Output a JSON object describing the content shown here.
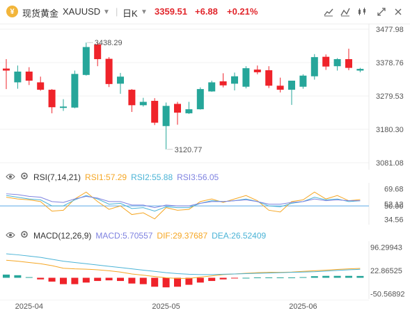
{
  "header": {
    "logo_glyph": "¥",
    "instrument_name": "现货黄金",
    "symbol": "XAUUSD",
    "timeframe": "日K",
    "last_price": "3359.51",
    "change": "+6.88",
    "change_pct": "+0.21%",
    "icons": [
      "indicator-icon",
      "compare-icon",
      "candle-style-icon",
      "fullscreen-icon",
      "close-icon"
    ]
  },
  "colors": {
    "up": "#26a69a",
    "down": "#ef232a",
    "rsi1": "#f5a623",
    "rsi2": "#4ab3d6",
    "rsi3": "#7e82e0",
    "macd_dif": "#f5a623",
    "macd_dea": "#4ab3d6"
  },
  "chart_data": [
    {
      "type": "candlestick",
      "price_labels": [
        "3477.98",
        "3378.76",
        "3279.53",
        "3180.30",
        "3081.08"
      ],
      "ylim": [
        3081.08,
        3477.98
      ],
      "annotations": [
        {
          "text": "3438.29",
          "value": 3438.29
        },
        {
          "text": "3120.77",
          "value": 3120.77
        }
      ],
      "x_ticks": [
        "2025-04",
        "2025-05",
        "2025-06"
      ],
      "candles": [
        {
          "o": 3361,
          "h": 3389,
          "l": 3300,
          "c": 3355
        },
        {
          "o": 3320,
          "h": 3370,
          "l": 3301,
          "c": 3352
        },
        {
          "o": 3352,
          "h": 3365,
          "l": 3312,
          "c": 3325
        },
        {
          "o": 3320,
          "h": 3337,
          "l": 3295,
          "c": 3298
        },
        {
          "o": 3298,
          "h": 3300,
          "l": 3228,
          "c": 3246
        },
        {
          "o": 3244,
          "h": 3270,
          "l": 3235,
          "c": 3248
        },
        {
          "o": 3245,
          "h": 3355,
          "l": 3243,
          "c": 3345
        },
        {
          "o": 3342,
          "h": 3438.29,
          "l": 3340,
          "c": 3425
        },
        {
          "o": 3433,
          "h": 3438,
          "l": 3368,
          "c": 3389
        },
        {
          "o": 3390,
          "h": 3395,
          "l": 3306,
          "c": 3315
        },
        {
          "o": 3316,
          "h": 3348,
          "l": 3286,
          "c": 3337
        },
        {
          "o": 3298,
          "h": 3300,
          "l": 3232,
          "c": 3252
        },
        {
          "o": 3252,
          "h": 3274,
          "l": 3248,
          "c": 3262
        },
        {
          "o": 3265,
          "h": 3273,
          "l": 3193,
          "c": 3200
        },
        {
          "o": 3190,
          "h": 3260,
          "l": 3120.77,
          "c": 3250
        },
        {
          "o": 3256,
          "h": 3262,
          "l": 3194,
          "c": 3230
        },
        {
          "o": 3228,
          "h": 3262,
          "l": 3226,
          "c": 3240
        },
        {
          "o": 3240,
          "h": 3305,
          "l": 3239,
          "c": 3300
        },
        {
          "o": 3293,
          "h": 3325,
          "l": 3292,
          "c": 3320
        },
        {
          "o": 3323,
          "h": 3347,
          "l": 3305,
          "c": 3311
        },
        {
          "o": 3316,
          "h": 3349,
          "l": 3296,
          "c": 3338
        },
        {
          "o": 3307,
          "h": 3368,
          "l": 3302,
          "c": 3362
        },
        {
          "o": 3358,
          "h": 3370,
          "l": 3344,
          "c": 3350
        },
        {
          "o": 3356,
          "h": 3368,
          "l": 3303,
          "c": 3310
        },
        {
          "o": 3310,
          "h": 3334,
          "l": 3290,
          "c": 3298
        },
        {
          "o": 3298,
          "h": 3325,
          "l": 3253,
          "c": 3325
        },
        {
          "o": 3307,
          "h": 3344,
          "l": 3301,
          "c": 3340
        },
        {
          "o": 3338,
          "h": 3404,
          "l": 3328,
          "c": 3395
        },
        {
          "o": 3396,
          "h": 3403,
          "l": 3357,
          "c": 3367
        },
        {
          "o": 3368,
          "h": 3392,
          "l": 3355,
          "c": 3389
        },
        {
          "o": 3389,
          "h": 3420,
          "l": 3356,
          "c": 3363
        },
        {
          "o": 3355,
          "h": 3363,
          "l": 3350,
          "c": 3360
        }
      ]
    },
    {
      "type": "line",
      "name": "RSI(7,14,21)",
      "legend": {
        "rsi1": "RSI1:57.29",
        "rsi2": "RSI2:55.88",
        "rsi3": "RSI3:56.05"
      },
      "tick_labels": [
        "69.68",
        "52.12",
        "50.00",
        "34.56"
      ],
      "ylim": [
        30,
        75
      ],
      "series": [
        {
          "key": "rsi1",
          "values": [
            60,
            58,
            57,
            55,
            44,
            45,
            58,
            66,
            55,
            46,
            50,
            40,
            42,
            35,
            48,
            45,
            46,
            55,
            58,
            54,
            58,
            62,
            56,
            45,
            43,
            55,
            57,
            66,
            58,
            62,
            56,
            57.29
          ]
        },
        {
          "key": "rsi2",
          "values": [
            62,
            60,
            58,
            57,
            50,
            50,
            57,
            62,
            58,
            52,
            53,
            47,
            48,
            44,
            49,
            48,
            48,
            53,
            56,
            55,
            56,
            58,
            55,
            50,
            49,
            53,
            55,
            60,
            57,
            58,
            55,
            55.88
          ]
        },
        {
          "key": "rsi3",
          "values": [
            64,
            63,
            61,
            60,
            55,
            54,
            58,
            61,
            59,
            55,
            55,
            51,
            51,
            48,
            51,
            50,
            50,
            53,
            55,
            55,
            56,
            57,
            55,
            52,
            52,
            54,
            55,
            58,
            56,
            57,
            56,
            56.05
          ]
        }
      ]
    },
    {
      "type": "bar-line",
      "name": "MACD(12,26,9)",
      "legend": {
        "macd": "MACD:5.70557",
        "dif": "DIF:29.37687",
        "dea": "DEA:26.52409"
      },
      "tick_labels": [
        "96.29943",
        "22.86525",
        "-50.56892"
      ],
      "ylim": [
        -60,
        110
      ],
      "macd": [
        10,
        8,
        2,
        -5,
        -12,
        -20,
        -20,
        -15,
        -10,
        -8,
        -10,
        -18,
        -20,
        -28,
        -30,
        -28,
        -22,
        -15,
        -10,
        -5,
        -2,
        0,
        1,
        1,
        1,
        1,
        2,
        5,
        6,
        6,
        6,
        5.7
      ],
      "dif": [
        55,
        52,
        48,
        44,
        38,
        30,
        28,
        27,
        25,
        22,
        18,
        12,
        8,
        4,
        0,
        -2,
        -2,
        2,
        6,
        10,
        12,
        14,
        16,
        17,
        17,
        18,
        20,
        22,
        24,
        26,
        28,
        29.38
      ],
      "dea": [
        75,
        72,
        68,
        64,
        58,
        52,
        48,
        44,
        40,
        36,
        32,
        28,
        24,
        20,
        16,
        13,
        11,
        10,
        10,
        11,
        12,
        13,
        14,
        15,
        16,
        17,
        18,
        19,
        21,
        23,
        25,
        26.52
      ]
    }
  ]
}
